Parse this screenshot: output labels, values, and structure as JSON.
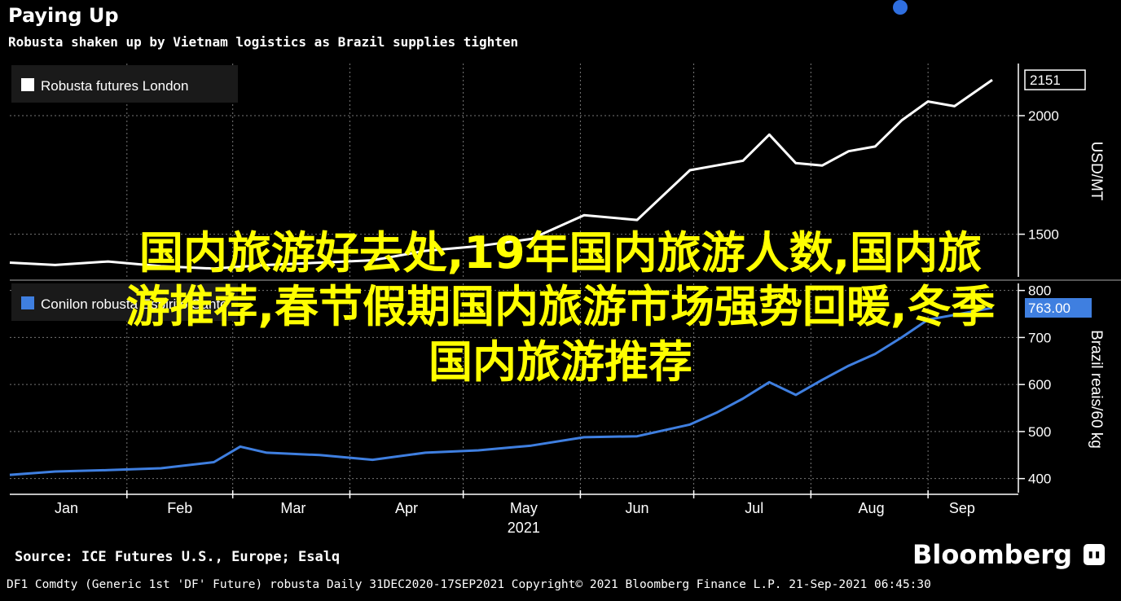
{
  "header": {
    "title": "Paying Up",
    "subtitle": "Robusta shaken up by Vietnam logistics as Brazil supplies tighten"
  },
  "overlay_text": {
    "line1": "国内旅游好去处,19年国内旅游人数,国内旅",
    "line2": "游推荐,春节假期国内旅游市场强势回暖,冬季",
    "line3": "国内旅游推荐"
  },
  "footer": {
    "source": "Source: ICE Futures U.S., Europe; Esalq",
    "brand": "Bloomberg",
    "brand_icon": "bloomberg-terminal-icon",
    "info": "DF1 Comdty (Generic 1st 'DF' Future) robusta  Daily 31DEC2020-17SEP2021  Copyright© 2021 Bloomberg Finance L.P.  21-Sep-2021 06:45:30"
  },
  "colors": {
    "background": "#000000",
    "robusta_line": "#ffffff",
    "espirito_line": "#3f7fe0",
    "overlay_text": "#ffff00",
    "gridlines": "#777777"
  },
  "chart_data": [
    {
      "type": "line",
      "legend": "top-left",
      "grid": true,
      "yticks": [
        1500,
        2000
      ],
      "ylabel": "USD/MT",
      "last_value_label": "2151",
      "series": [
        {
          "name": "Robusta futures London",
          "x": [
            "2020-12-31",
            "2021-01-12",
            "2021-01-26",
            "2021-02-09",
            "2021-02-23",
            "2021-03-09",
            "2021-03-23",
            "2021-04-06",
            "2021-04-20",
            "2021-05-04",
            "2021-05-18",
            "2021-06-01",
            "2021-06-15",
            "2021-06-29",
            "2021-07-06",
            "2021-07-13",
            "2021-07-20",
            "2021-07-27",
            "2021-08-03",
            "2021-08-10",
            "2021-08-17",
            "2021-08-24",
            "2021-08-31",
            "2021-09-07",
            "2021-09-17"
          ],
          "values": [
            1380,
            1370,
            1385,
            1365,
            1355,
            1370,
            1380,
            1390,
            1430,
            1450,
            1480,
            1580,
            1560,
            1770,
            1790,
            1810,
            1920,
            1800,
            1790,
            1850,
            1870,
            1980,
            2060,
            2040,
            2151
          ]
        }
      ]
    },
    {
      "type": "line",
      "legend": "top-left",
      "grid": true,
      "yticks": [
        400,
        500,
        600,
        700,
        800
      ],
      "ylabel": "Brazil reais/60 kg",
      "last_value_label": "763.00",
      "series": [
        {
          "name": "Conilon robusta Espirito Santo",
          "x": [
            "2020-12-31",
            "2021-01-12",
            "2021-01-26",
            "2021-02-09",
            "2021-02-23",
            "2021-03-02",
            "2021-03-09",
            "2021-03-23",
            "2021-04-06",
            "2021-04-20",
            "2021-05-04",
            "2021-05-18",
            "2021-06-01",
            "2021-06-15",
            "2021-06-29",
            "2021-07-06",
            "2021-07-13",
            "2021-07-20",
            "2021-07-27",
            "2021-08-03",
            "2021-08-10",
            "2021-08-17",
            "2021-08-24",
            "2021-08-31",
            "2021-09-07",
            "2021-09-17"
          ],
          "values": [
            408,
            415,
            418,
            422,
            435,
            468,
            455,
            450,
            440,
            455,
            460,
            470,
            488,
            490,
            515,
            540,
            570,
            605,
            578,
            610,
            640,
            665,
            700,
            738,
            748,
            763
          ]
        }
      ]
    }
  ],
  "xaxis": {
    "ticks": [
      "Jan",
      "Feb",
      "Mar",
      "Apr",
      "May",
      "Jun",
      "Jul",
      "Aug",
      "Sep"
    ],
    "year": "2021"
  }
}
